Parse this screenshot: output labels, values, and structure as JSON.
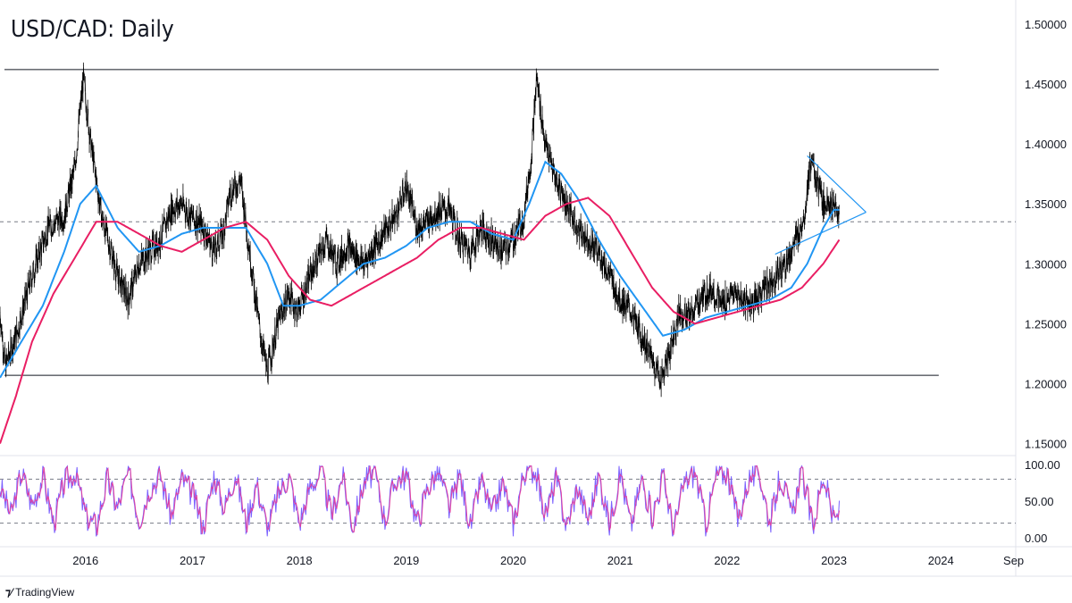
{
  "header": {
    "title": "USD/CAD: Daily"
  },
  "footer": {
    "brand": "TradingView"
  },
  "colors": {
    "price": "#000000",
    "ma_fast": "#2196f3",
    "ma_slow": "#e91e63",
    "stoch_k": "#7b61ff",
    "stoch_d": "#e040a0",
    "triangle": "#2196f3",
    "levels": "#131722"
  },
  "chart_data": [
    {
      "type": "line",
      "title": "USD/CAD: Daily",
      "ylim": [
        1.14,
        1.52
      ],
      "y_ticks": [
        "1.50000",
        "1.45000",
        "1.40000",
        "1.35000",
        "1.30000",
        "1.25000",
        "1.20000",
        "1.15000"
      ],
      "x_ticks": [
        "2016",
        "2017",
        "2018",
        "2019",
        "2020",
        "2021",
        "2022",
        "2023",
        "2024",
        "Sep"
      ],
      "x_range": [
        2015.2,
        2024.7
      ],
      "levels": {
        "resistance": 1.462,
        "support": 1.207,
        "mid": 1.335
      },
      "series": [
        {
          "x": [
            2015.2,
            2015.25,
            2015.35,
            2015.5,
            2015.65,
            2015.8,
            2015.9,
            2015.98,
            2016.05,
            2016.15,
            2016.3,
            2016.4,
            2016.5,
            2016.6,
            2016.7,
            2016.8,
            2016.9,
            2016.98,
            2017.1,
            2017.2,
            2017.3,
            2017.35,
            2017.45,
            2017.55,
            2017.62,
            2017.7,
            2017.8,
            2017.9,
            2017.98,
            2018.1,
            2018.25,
            2018.35,
            2018.45,
            2018.6,
            2018.75,
            2018.9,
            2019.0,
            2019.1,
            2019.2,
            2019.3,
            2019.4,
            2019.5,
            2019.6,
            2019.7,
            2019.8,
            2019.9,
            2020.0,
            2020.1,
            2020.17,
            2020.22,
            2020.3,
            2020.4,
            2020.5,
            2020.6,
            2020.7,
            2020.8,
            2020.9,
            2021.0,
            2021.1,
            2021.2,
            2021.3,
            2021.38,
            2021.45,
            2021.55,
            2021.65,
            2021.75,
            2021.85,
            2021.95,
            2022.05,
            2022.15,
            2022.25,
            2022.35,
            2022.45,
            2022.55,
            2022.65,
            2022.72,
            2022.78,
            2022.85,
            2022.9,
            2022.95,
            2023.0,
            2023.05
          ],
          "y": [
            1.26,
            1.215,
            1.24,
            1.29,
            1.33,
            1.34,
            1.38,
            1.455,
            1.4,
            1.34,
            1.29,
            1.27,
            1.3,
            1.31,
            1.32,
            1.345,
            1.35,
            1.34,
            1.33,
            1.31,
            1.33,
            1.36,
            1.37,
            1.3,
            1.25,
            1.21,
            1.25,
            1.275,
            1.26,
            1.29,
            1.32,
            1.3,
            1.315,
            1.3,
            1.32,
            1.34,
            1.365,
            1.33,
            1.335,
            1.345,
            1.345,
            1.32,
            1.31,
            1.33,
            1.32,
            1.31,
            1.32,
            1.34,
            1.39,
            1.455,
            1.4,
            1.37,
            1.35,
            1.33,
            1.32,
            1.31,
            1.29,
            1.27,
            1.26,
            1.24,
            1.22,
            1.205,
            1.22,
            1.26,
            1.255,
            1.27,
            1.28,
            1.265,
            1.275,
            1.27,
            1.265,
            1.28,
            1.29,
            1.3,
            1.32,
            1.34,
            1.385,
            1.365,
            1.35,
            1.355,
            1.345,
            1.34
          ]
        },
        {
          "x": [
            2015.2,
            2015.4,
            2015.6,
            2015.8,
            2015.95,
            2016.1,
            2016.3,
            2016.5,
            2016.7,
            2016.9,
            2017.1,
            2017.3,
            2017.5,
            2017.7,
            2017.85,
            2018.0,
            2018.2,
            2018.4,
            2018.6,
            2018.8,
            2019.0,
            2019.2,
            2019.4,
            2019.6,
            2019.8,
            2020.0,
            2020.15,
            2020.3,
            2020.45,
            2020.6,
            2020.8,
            2021.0,
            2021.2,
            2021.4,
            2021.6,
            2021.8,
            2022.0,
            2022.2,
            2022.4,
            2022.6,
            2022.75,
            2022.9,
            2023.0,
            2023.05
          ],
          "y": [
            1.205,
            1.235,
            1.265,
            1.31,
            1.35,
            1.365,
            1.33,
            1.31,
            1.315,
            1.325,
            1.33,
            1.33,
            1.33,
            1.3,
            1.265,
            1.265,
            1.27,
            1.285,
            1.3,
            1.305,
            1.315,
            1.33,
            1.335,
            1.335,
            1.325,
            1.32,
            1.35,
            1.385,
            1.375,
            1.355,
            1.32,
            1.29,
            1.265,
            1.24,
            1.245,
            1.255,
            1.26,
            1.265,
            1.27,
            1.28,
            1.3,
            1.33,
            1.345,
            1.345
          ]
        },
        {
          "x": [
            2015.2,
            2015.35,
            2015.5,
            2015.7,
            2015.9,
            2016.1,
            2016.3,
            2016.5,
            2016.7,
            2016.9,
            2017.1,
            2017.3,
            2017.5,
            2017.7,
            2017.9,
            2018.1,
            2018.3,
            2018.5,
            2018.7,
            2018.9,
            2019.1,
            2019.3,
            2019.5,
            2019.7,
            2019.9,
            2020.1,
            2020.3,
            2020.5,
            2020.7,
            2020.9,
            2021.1,
            2021.3,
            2021.5,
            2021.7,
            2021.9,
            2022.1,
            2022.3,
            2022.5,
            2022.7,
            2022.9,
            2023.05
          ],
          "y": [
            1.15,
            1.19,
            1.235,
            1.275,
            1.305,
            1.335,
            1.335,
            1.325,
            1.315,
            1.31,
            1.32,
            1.33,
            1.335,
            1.32,
            1.29,
            1.27,
            1.265,
            1.275,
            1.285,
            1.295,
            1.305,
            1.32,
            1.33,
            1.33,
            1.325,
            1.32,
            1.34,
            1.35,
            1.355,
            1.34,
            1.31,
            1.28,
            1.26,
            1.25,
            1.255,
            1.26,
            1.265,
            1.27,
            1.28,
            1.3,
            1.32
          ]
        }
      ]
    },
    {
      "type": "line",
      "ylim": [
        0,
        100
      ],
      "y_ticks": [
        "100.00",
        "50.00",
        "0.00"
      ],
      "levels": [
        80,
        20
      ],
      "series": [
        {
          "x": [
            2015.2,
            2015.3,
            2015.4,
            2015.5,
            2015.6,
            2015.7,
            2015.8,
            2015.9,
            2016.0,
            2016.1,
            2016.2,
            2016.3,
            2016.4,
            2016.5,
            2016.6,
            2016.7,
            2016.8,
            2016.9,
            2017.0,
            2017.1,
            2017.2,
            2017.3,
            2017.4,
            2017.5,
            2017.6,
            2017.7,
            2017.8,
            2017.9,
            2018.0,
            2018.1,
            2018.2,
            2018.3,
            2018.4,
            2018.5,
            2018.6,
            2018.7,
            2018.8,
            2018.9,
            2019.0,
            2019.1,
            2019.2,
            2019.3,
            2019.4,
            2019.5,
            2019.6,
            2019.7,
            2019.8,
            2019.9,
            2020.0,
            2020.1,
            2020.2,
            2020.3,
            2020.4,
            2020.5,
            2020.6,
            2020.7,
            2020.8,
            2020.9,
            2021.0,
            2021.1,
            2021.2,
            2021.3,
            2021.4,
            2021.5,
            2021.6,
            2021.7,
            2021.8,
            2021.9,
            2022.0,
            2022.1,
            2022.2,
            2022.3,
            2022.4,
            2022.5,
            2022.6,
            2022.7,
            2022.8,
            2022.9,
            2023.0,
            2023.05
          ],
          "y": [
            70,
            30,
            90,
            45,
            85,
            20,
            75,
            90,
            30,
            15,
            80,
            40,
            90,
            25,
            70,
            85,
            30,
            80,
            60,
            15,
            85,
            40,
            90,
            20,
            75,
            10,
            60,
            85,
            20,
            70,
            90,
            30,
            85,
            15,
            75,
            90,
            25,
            80,
            85,
            20,
            70,
            90,
            40,
            85,
            15,
            80,
            30,
            75,
            20,
            90,
            95,
            30,
            80,
            15,
            70,
            25,
            85,
            20,
            90,
            15,
            80,
            30,
            85,
            10,
            75,
            90,
            20,
            85,
            90,
            25,
            80,
            90,
            20,
            85,
            30,
            90,
            15,
            85,
            20,
            35
          ]
        }
      ]
    }
  ]
}
